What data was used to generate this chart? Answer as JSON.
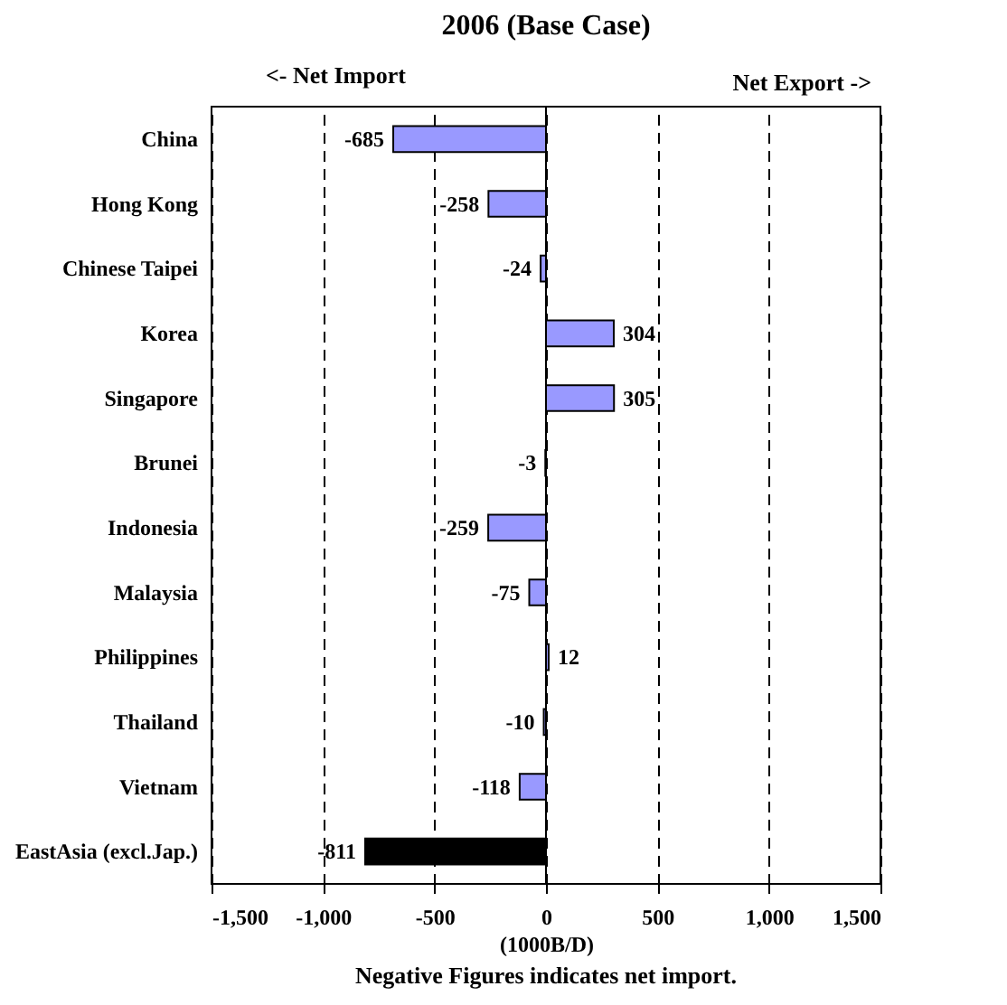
{
  "chart_data": {
    "type": "bar",
    "orientation": "horizontal",
    "title": "2006 (Base Case)",
    "xlabel": "(1000B/D)",
    "annotations": [
      "<- Net Import",
      "Net Export ->",
      "Negative Figures indicates net import."
    ],
    "categories": [
      "China",
      "Hong Kong",
      "Chinese Taipei",
      "Korea",
      "Singapore",
      "Brunei",
      "Indonesia",
      "Malaysia",
      "Philippines",
      "Thailand",
      "Vietnam",
      "EastAsia (excl.Jap.)"
    ],
    "values": [
      -685,
      -258,
      -24,
      304,
      305,
      -3,
      -259,
      -75,
      12,
      -10,
      -118,
      -811
    ],
    "colors": [
      "#9999ff",
      "#9999ff",
      "#9999ff",
      "#9999ff",
      "#9999ff",
      "#9999ff",
      "#9999ff",
      "#9999ff",
      "#9999ff",
      "#9999ff",
      "#9999ff",
      "#000000"
    ],
    "xlim": [
      -1500,
      1500
    ],
    "xticks": [
      {
        "value": -1500,
        "label": "-1,500"
      },
      {
        "value": -1000,
        "label": "-1,000"
      },
      -500,
      0,
      500,
      {
        "value": 1000,
        "label": "1,000"
      },
      {
        "value": 1500,
        "label": "1,500"
      }
    ],
    "grid": "x",
    "data_labels": true
  }
}
